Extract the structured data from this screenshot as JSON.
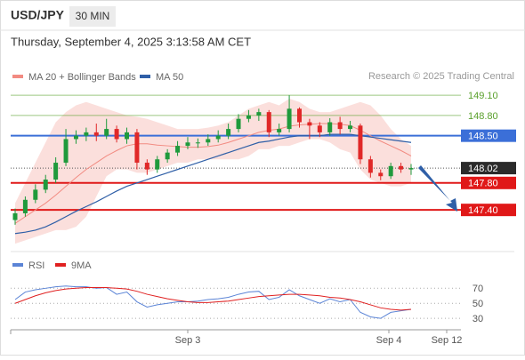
{
  "header": {
    "symbol": "USD/JPY",
    "timeframe": "30 MIN",
    "datetime": "Thursday, September 4, 2025 3:13:58 AM CET"
  },
  "chart_data": [
    {
      "type": "candlestick",
      "note": "Research © 2025 Trading Central",
      "up_color": "#1f9a3c",
      "down_color": "#e02828",
      "ylim": [
        147.02,
        149.26
      ],
      "open": [
        147.25,
        147.35,
        147.55,
        147.7,
        147.85,
        148.1,
        148.45,
        148.5,
        148.55,
        148.5,
        148.6,
        148.45,
        148.55,
        148.1,
        148.0,
        148.15,
        148.25,
        148.35,
        148.4,
        148.4,
        148.45,
        148.5,
        148.6,
        148.75,
        148.8,
        148.85,
        148.55,
        148.6,
        148.9,
        148.7,
        148.65,
        148.55,
        148.7,
        148.6,
        148.65,
        148.15,
        147.95,
        147.9,
        148.05,
        148.0
      ],
      "high": [
        147.42,
        147.6,
        147.78,
        147.92,
        148.18,
        148.6,
        148.58,
        148.62,
        148.68,
        148.75,
        148.65,
        148.62,
        148.6,
        148.15,
        148.2,
        148.3,
        148.42,
        148.48,
        148.46,
        148.52,
        148.58,
        148.68,
        148.82,
        148.88,
        148.9,
        148.88,
        148.68,
        149.1,
        148.92,
        148.75,
        148.7,
        148.76,
        148.78,
        148.72,
        148.68,
        148.2,
        148.0,
        148.1,
        148.1,
        148.08
      ],
      "low": [
        147.18,
        147.3,
        147.5,
        147.65,
        147.8,
        148.05,
        148.38,
        148.42,
        148.42,
        148.45,
        148.4,
        148.38,
        148.0,
        147.92,
        147.95,
        148.1,
        148.2,
        148.3,
        148.32,
        148.35,
        148.4,
        148.45,
        148.55,
        148.7,
        148.72,
        148.48,
        148.5,
        148.55,
        148.62,
        148.45,
        148.48,
        148.5,
        148.52,
        148.55,
        148.08,
        147.88,
        147.84,
        147.86,
        147.95,
        147.92
      ],
      "close": [
        147.35,
        147.55,
        147.7,
        147.85,
        148.1,
        148.45,
        148.5,
        148.55,
        148.5,
        148.6,
        148.45,
        148.55,
        148.1,
        148.0,
        148.15,
        148.25,
        148.35,
        148.4,
        148.4,
        148.45,
        148.5,
        148.6,
        148.75,
        148.8,
        148.85,
        148.55,
        148.6,
        148.9,
        148.7,
        148.65,
        148.55,
        148.7,
        148.6,
        148.65,
        148.15,
        147.95,
        147.9,
        148.05,
        148.0,
        148.02
      ],
      "series": [
        {
          "name": "MA 20 + Bollinger Bands",
          "color": "#f28b82",
          "values": [
            147.2,
            147.3,
            147.4,
            147.5,
            147.62,
            147.75,
            147.88,
            148.0,
            148.1,
            148.2,
            148.28,
            148.35,
            148.38,
            148.38,
            148.36,
            148.35,
            148.34,
            148.33,
            148.33,
            148.34,
            148.36,
            148.4,
            148.45,
            148.5,
            148.55,
            148.58,
            148.6,
            148.64,
            148.66,
            148.67,
            148.68,
            148.68,
            148.67,
            148.65,
            148.58,
            148.5,
            148.42,
            148.35,
            148.28,
            148.2
          ],
          "upper": [
            147.5,
            147.8,
            148.1,
            148.4,
            148.7,
            148.85,
            148.95,
            149.0,
            148.95,
            148.9,
            148.85,
            148.8,
            148.78,
            148.75,
            148.7,
            148.65,
            148.6,
            148.6,
            148.6,
            148.62,
            148.65,
            148.7,
            148.8,
            148.9,
            148.95,
            149.0,
            148.95,
            149.05,
            149.0,
            148.9,
            148.85,
            148.85,
            148.9,
            148.95,
            149.0,
            148.95,
            148.8,
            148.6,
            148.45,
            148.35
          ],
          "lower": [
            146.9,
            146.95,
            147.0,
            147.05,
            147.1,
            147.1,
            147.15,
            147.3,
            147.6,
            147.9,
            148.0,
            148.0,
            147.95,
            147.95,
            148.0,
            148.05,
            148.1,
            148.1,
            148.15,
            148.15,
            148.15,
            148.15,
            148.15,
            148.2,
            148.3,
            148.3,
            148.35,
            148.35,
            148.4,
            148.45,
            148.45,
            148.4,
            148.3,
            148.25,
            148.0,
            147.85,
            147.8,
            147.75,
            147.75,
            147.8
          ]
        },
        {
          "name": "MA 50",
          "color": "#2f5fa7",
          "values": [
            147.05,
            147.07,
            147.1,
            147.15,
            147.22,
            147.3,
            147.38,
            147.45,
            147.52,
            147.6,
            147.68,
            147.75,
            147.8,
            147.85,
            147.9,
            147.95,
            148.0,
            148.05,
            148.1,
            148.15,
            148.2,
            148.25,
            148.3,
            148.35,
            148.4,
            148.42,
            148.45,
            148.48,
            148.5,
            148.5,
            148.5,
            148.52,
            148.52,
            148.52,
            148.5,
            148.48,
            148.46,
            148.44,
            148.42,
            148.4
          ]
        }
      ],
      "levels": [
        {
          "value": 149.1,
          "label": "149.10",
          "color": "#5aa02c",
          "filled": false
        },
        {
          "value": 148.8,
          "label": "148.80",
          "color": "#5aa02c",
          "filled": false
        },
        {
          "value": 148.5,
          "label": "148.50",
          "color": "#3b6fd8",
          "filled": true
        },
        {
          "value": 148.02,
          "label": "148.02",
          "color": "#2b2b2b",
          "filled": true
        },
        {
          "value": 147.8,
          "label": "147.80",
          "color": "#e01818",
          "filled": true
        },
        {
          "value": 147.4,
          "label": "147.40",
          "color": "#e01818",
          "filled": true
        }
      ]
    },
    {
      "type": "line",
      "ylim": [
        16,
        81
      ],
      "yticks": [
        30,
        50,
        70
      ],
      "grid": true,
      "x_labels": [
        "Sep 3",
        "Sep 4",
        "Sep 12"
      ],
      "series": [
        {
          "name": "RSI",
          "color": "#5b84d6",
          "values": [
            55,
            65,
            68,
            70,
            72,
            73,
            72,
            72,
            70,
            71,
            62,
            65,
            52,
            45,
            48,
            50,
            52,
            52,
            53,
            55,
            56,
            58,
            62,
            65,
            66,
            55,
            58,
            68,
            60,
            55,
            50,
            56,
            52,
            55,
            38,
            32,
            30,
            38,
            40,
            42
          ]
        },
        {
          "name": "9MA",
          "color": "#e02020",
          "values": [
            50,
            55,
            60,
            64,
            67,
            69,
            70,
            71,
            71,
            71,
            70,
            69,
            66,
            62,
            59,
            56,
            54,
            52,
            51,
            51,
            52,
            53,
            55,
            57,
            59,
            60,
            61,
            62,
            62,
            61,
            60,
            58,
            57,
            55,
            52,
            48,
            44,
            42,
            41,
            42
          ]
        }
      ]
    }
  ]
}
